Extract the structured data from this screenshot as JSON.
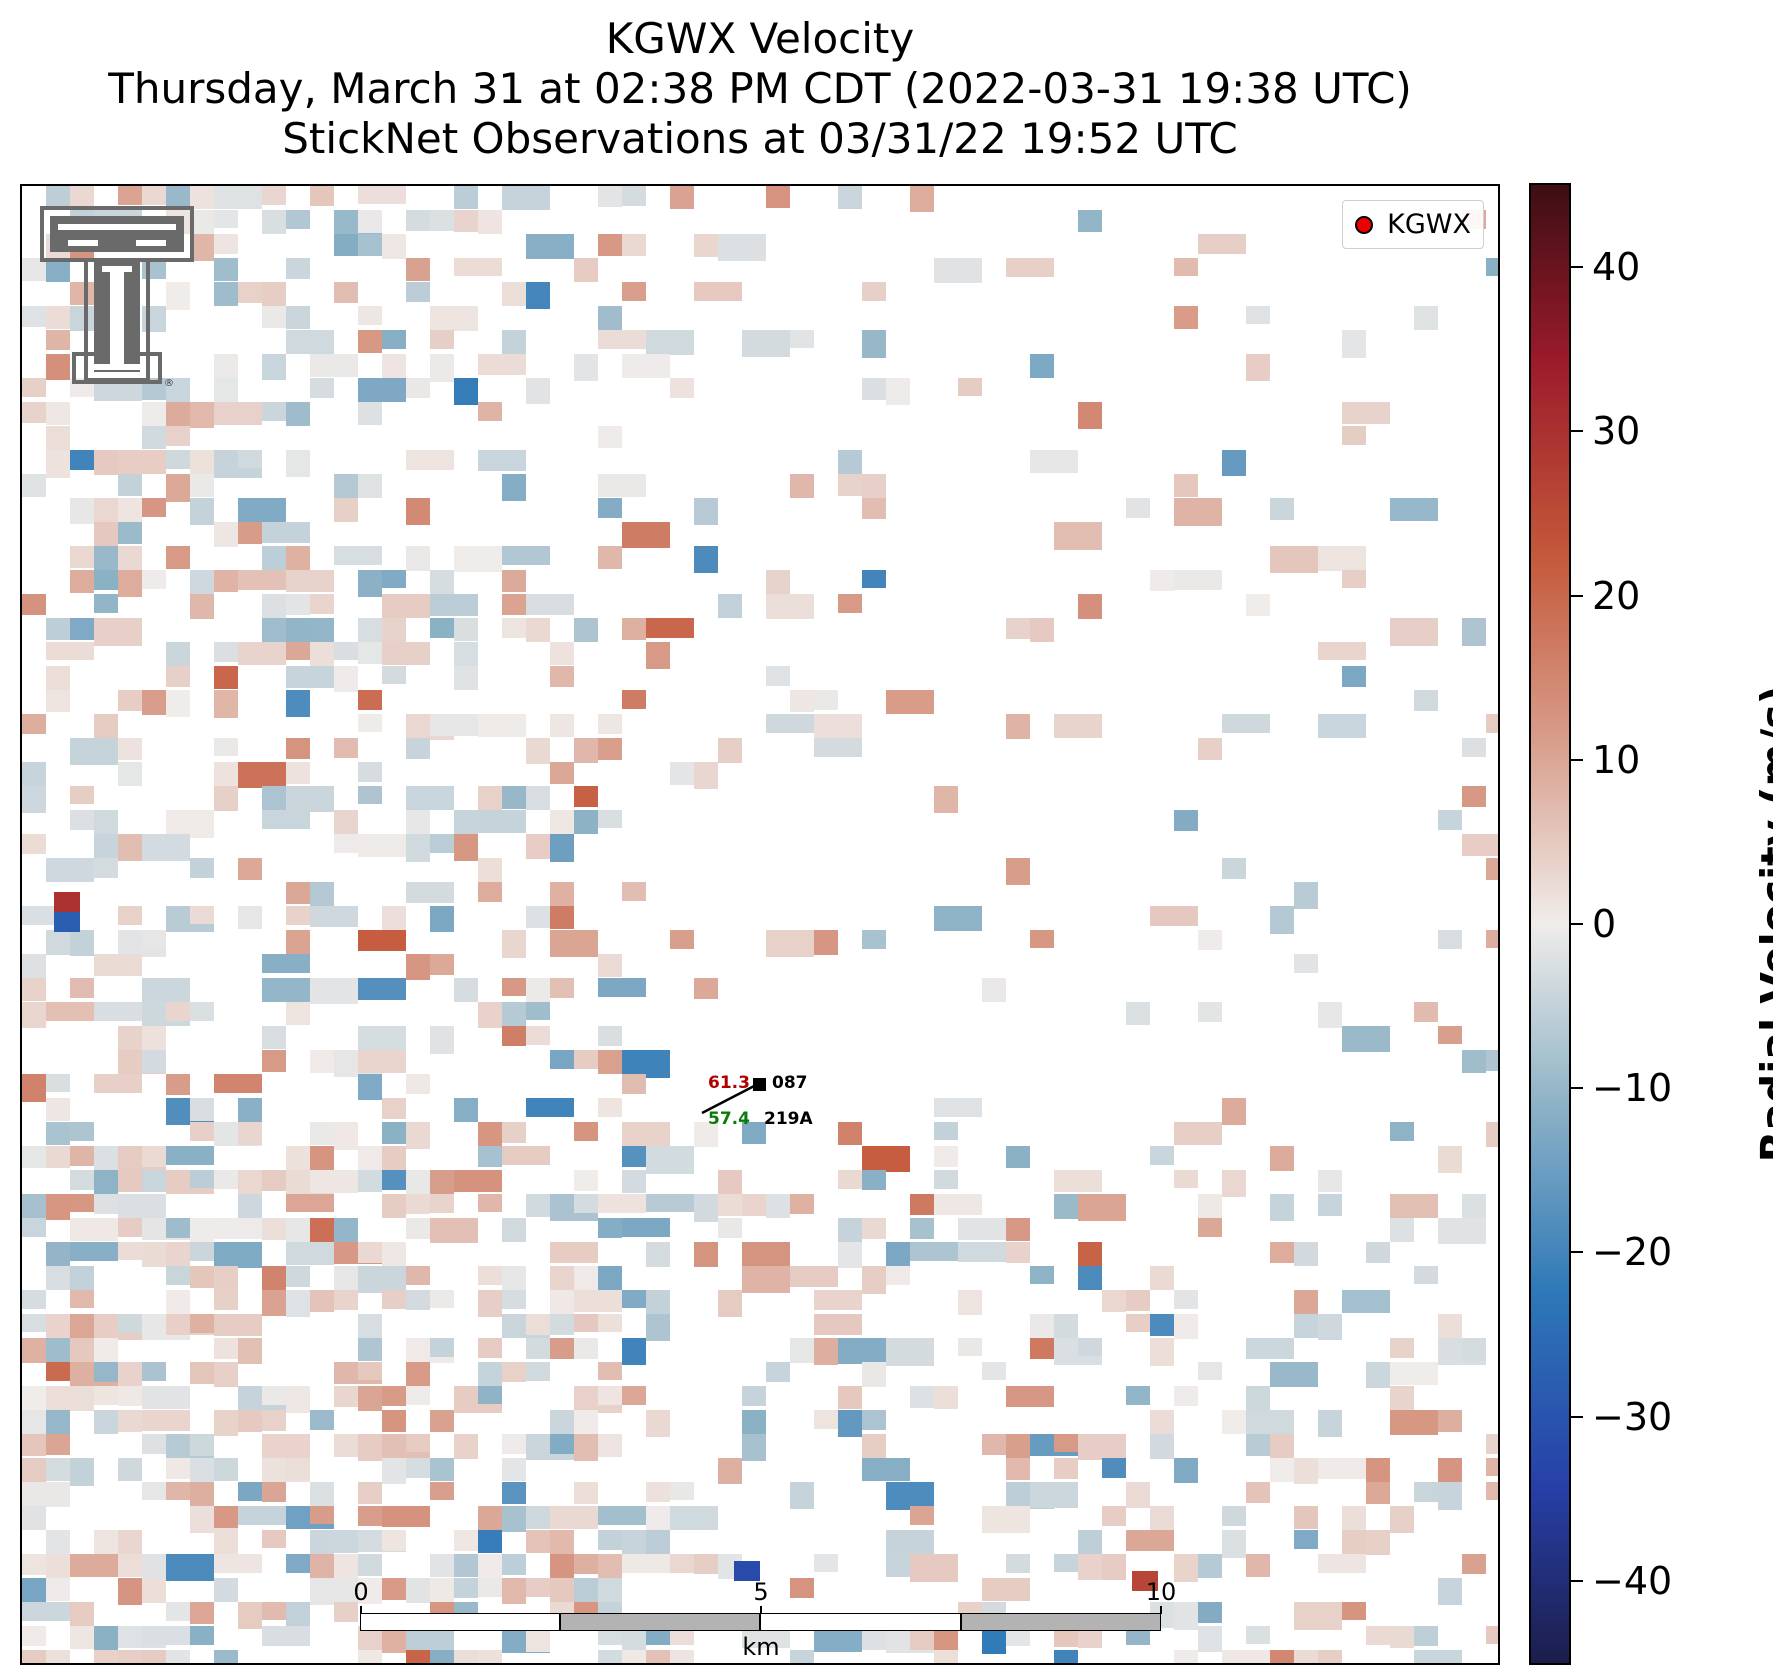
{
  "title": {
    "line1": "KGWX Velocity",
    "line2": "Thursday, March 31 at 02:38 PM CDT (2022-03-31 19:38 UTC)",
    "line3": "StickNet Observations at 03/31/22 19:52 UTC"
  },
  "legend": {
    "label": "KGWX",
    "marker_color": "#ee0000"
  },
  "station": {
    "temperature": "61.3",
    "dewpoint": "57.4",
    "wind_dir_code": "087",
    "id": "219A",
    "temp_color": "#b00000",
    "dew_color": "#0a7a0a"
  },
  "scalebar": {
    "labels": [
      "0",
      "5",
      "10"
    ],
    "unit": "km"
  },
  "colorbar": {
    "label": "Radial Velocity (m/s)",
    "range": [
      -45,
      45
    ],
    "ticks": [
      "40",
      "30",
      "20",
      "10",
      "0",
      "−10",
      "−20",
      "−30",
      "−40"
    ],
    "tick_values": [
      40,
      30,
      20,
      10,
      0,
      -10,
      -20,
      -30,
      -40
    ]
  },
  "logo": {
    "name": "texas-tech-double-t-logo"
  }
}
